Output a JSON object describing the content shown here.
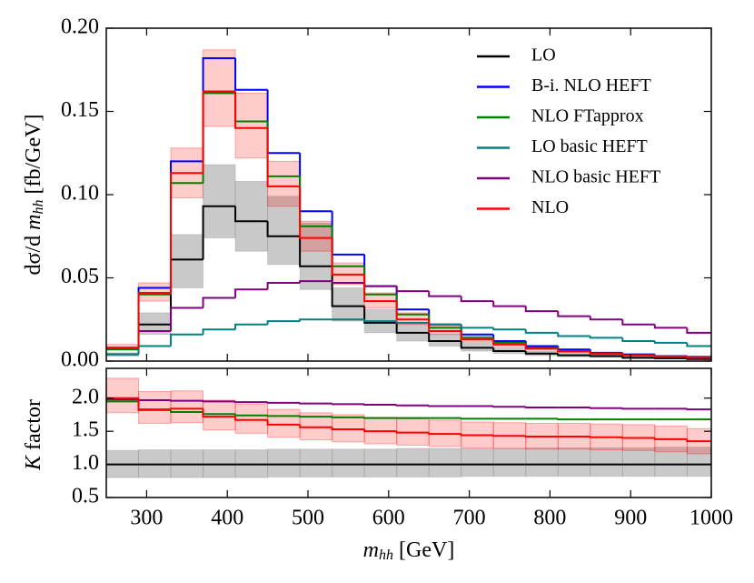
{
  "chart_data": [
    {
      "type": "histogram",
      "y_label": [
        "dσ/d ",
        "m",
        "hh",
        " [fb/GeV]"
      ],
      "bins": [
        250,
        290,
        330,
        370,
        410,
        450,
        490,
        530,
        570,
        610,
        650,
        690,
        730,
        770,
        810,
        850,
        890,
        930,
        970,
        1000
      ],
      "xlim": [
        250,
        1000
      ],
      "xticks": [
        300,
        400,
        500,
        600,
        700,
        800,
        900,
        1000
      ],
      "ylim": [
        0,
        0.2
      ],
      "yticks": [
        {
          "value": 0,
          "label": "0.00"
        },
        0.05,
        {
          "value": 0.1,
          "label": "0.10"
        },
        0.15,
        {
          "value": 0.2,
          "label": "0.20"
        }
      ],
      "legend": "upper right",
      "series": [
        {
          "name": "LO",
          "color": "#000000",
          "values": [
            0.004,
            0.022,
            0.061,
            0.093,
            0.084,
            0.075,
            0.057,
            0.033,
            0.023,
            0.017,
            0.012,
            0.008,
            0.006,
            0.0045,
            0.0035,
            0.003,
            0.002,
            0.0017,
            0.0012
          ],
          "lower": [
            0.003,
            0.016,
            0.044,
            0.074,
            0.066,
            0.058,
            0.043,
            0.024,
            0.017,
            0.012,
            0.009,
            0.006,
            0.0045,
            0.0033,
            0.0026,
            0.0022,
            0.0015,
            0.0012,
            0.0009
          ],
          "upper": [
            0.005,
            0.029,
            0.076,
            0.118,
            0.108,
            0.099,
            0.083,
            0.044,
            0.031,
            0.023,
            0.016,
            0.011,
            0.008,
            0.006,
            0.0047,
            0.004,
            0.0027,
            0.0023,
            0.0016
          ],
          "band_color": "#888888"
        },
        {
          "name": "B-i. NLO HEFT",
          "color": "#0000ff",
          "values": [
            0.008,
            0.044,
            0.12,
            0.182,
            0.163,
            0.125,
            0.09,
            0.064,
            0.045,
            0.031,
            0.022,
            0.016,
            0.012,
            0.009,
            0.007,
            0.005,
            0.004,
            0.003,
            0.0025
          ]
        },
        {
          "name": "NLO FTapprox",
          "color": "#008000",
          "values": [
            0.007,
            0.04,
            0.107,
            0.161,
            0.144,
            0.111,
            0.081,
            0.057,
            0.04,
            0.028,
            0.02,
            0.014,
            0.011,
            0.008,
            0.006,
            0.0045,
            0.0035,
            0.0028,
            0.002
          ]
        },
        {
          "name": "LO basic HEFT",
          "color": "#008080",
          "values": [
            0.004,
            0.009,
            0.016,
            0.019,
            0.022,
            0.024,
            0.025,
            0.025,
            0.024,
            0.023,
            0.022,
            0.02,
            0.019,
            0.017,
            0.015,
            0.014,
            0.012,
            0.011,
            0.009
          ]
        },
        {
          "name": "NLO basic HEFT",
          "color": "#800080",
          "values": [
            0.008,
            0.018,
            0.032,
            0.038,
            0.043,
            0.047,
            0.048,
            0.047,
            0.045,
            0.042,
            0.039,
            0.036,
            0.033,
            0.03,
            0.027,
            0.025,
            0.022,
            0.02,
            0.017
          ]
        },
        {
          "name": "NLO",
          "color": "#ff0000",
          "values": [
            0.008,
            0.041,
            0.113,
            0.162,
            0.14,
            0.105,
            0.074,
            0.052,
            0.036,
            0.025,
            0.018,
            0.013,
            0.01,
            0.0075,
            0.0058,
            0.0045,
            0.0035,
            0.0028,
            0.002
          ],
          "lower": [
            0.007,
            0.036,
            0.098,
            0.141,
            0.122,
            0.093,
            0.066,
            0.046,
            0.032,
            0.022,
            0.016,
            0.0115,
            0.0089,
            0.0067,
            0.0052,
            0.004,
            0.0031,
            0.0025,
            0.0018
          ],
          "upper": [
            0.01,
            0.047,
            0.128,
            0.187,
            0.161,
            0.12,
            0.084,
            0.059,
            0.041,
            0.029,
            0.021,
            0.015,
            0.0115,
            0.0087,
            0.0067,
            0.0052,
            0.004,
            0.0032,
            0.0023
          ],
          "band_color": "#ff0000"
        }
      ]
    },
    {
      "type": "histogram",
      "y_label": [
        "K",
        " factor"
      ],
      "x_label": [
        "m",
        "hh",
        " [GeV]"
      ],
      "bins": [
        250,
        290,
        330,
        370,
        410,
        450,
        490,
        530,
        570,
        610,
        650,
        690,
        730,
        770,
        810,
        850,
        890,
        930,
        970,
        1000
      ],
      "xlim": [
        250,
        1000
      ],
      "xticks": [
        300,
        400,
        500,
        600,
        700,
        800,
        900,
        1000
      ],
      "ylim": [
        0.5,
        2.45
      ],
      "yticks": [
        0.5,
        {
          "value": 1,
          "label": "1.0"
        },
        1.5,
        {
          "value": 2,
          "label": "2.0"
        }
      ],
      "series": [
        {
          "color": "#000000",
          "values": [
            1,
            1,
            1,
            1,
            1,
            1,
            1,
            1,
            1,
            1,
            1,
            1,
            1,
            1,
            1,
            1,
            1,
            1,
            1
          ],
          "lower": [
            0.8,
            0.8,
            0.8,
            0.8,
            0.8,
            0.81,
            0.81,
            0.81,
            0.81,
            0.81,
            0.81,
            0.82,
            0.82,
            0.82,
            0.82,
            0.82,
            0.82,
            0.82,
            0.82
          ],
          "upper": [
            1.21,
            1.22,
            1.22,
            1.22,
            1.22,
            1.23,
            1.23,
            1.23,
            1.23,
            1.24,
            1.24,
            1.24,
            1.24,
            1.25,
            1.25,
            1.25,
            1.25,
            1.26,
            1.26
          ],
          "band_color": "#888888"
        },
        {
          "color": "#800080",
          "values": [
            1.98,
            1.97,
            1.96,
            1.95,
            1.94,
            1.93,
            1.92,
            1.91,
            1.9,
            1.89,
            1.88,
            1.88,
            1.87,
            1.86,
            1.86,
            1.85,
            1.84,
            1.84,
            1.83
          ]
        },
        {
          "color": "#008000",
          "values": [
            1.95,
            1.82,
            1.79,
            1.76,
            1.74,
            1.73,
            1.72,
            1.71,
            1.7,
            1.7,
            1.7,
            1.69,
            1.69,
            1.69,
            1.68,
            1.68,
            1.68,
            1.68,
            1.68
          ]
        },
        {
          "color": "#ff0000",
          "values": [
            2.0,
            1.83,
            1.84,
            1.72,
            1.67,
            1.6,
            1.56,
            1.53,
            1.5,
            1.48,
            1.46,
            1.44,
            1.43,
            1.42,
            1.42,
            1.41,
            1.4,
            1.38,
            1.35
          ],
          "lower": [
            1.78,
            1.62,
            1.63,
            1.52,
            1.47,
            1.41,
            1.37,
            1.34,
            1.31,
            1.29,
            1.27,
            1.25,
            1.24,
            1.23,
            1.23,
            1.22,
            1.21,
            1.19,
            1.16
          ],
          "upper": [
            2.3,
            2.1,
            2.11,
            1.97,
            1.91,
            1.83,
            1.78,
            1.75,
            1.71,
            1.69,
            1.67,
            1.64,
            1.63,
            1.62,
            1.62,
            1.61,
            1.6,
            1.58,
            1.54
          ],
          "band_color": "#ff0000"
        }
      ]
    }
  ]
}
